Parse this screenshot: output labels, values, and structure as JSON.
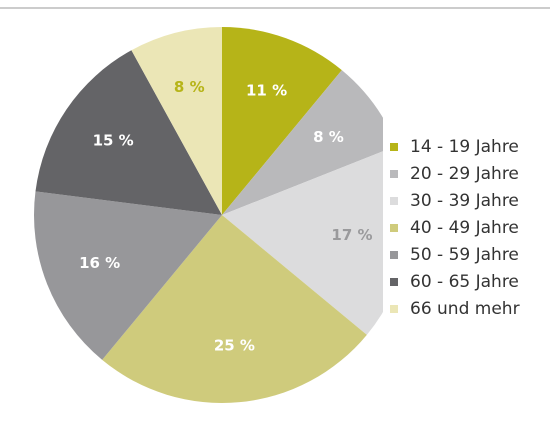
{
  "chart_data": {
    "type": "pie",
    "categories": [
      "14 - 19 Jahre",
      "20 - 29 Jahre",
      "30 - 39 Jahre",
      "40 - 49 Jahre",
      "50 - 59 Jahre",
      "60 - 65 Jahre",
      "66 und mehr"
    ],
    "values": [
      11,
      8,
      17,
      25,
      16,
      15,
      8
    ],
    "value_labels": [
      "11 %",
      "8 %",
      "17 %",
      "25 %",
      "16 %",
      "15 %",
      "8 %"
    ],
    "colors": [
      "#b6b418",
      "#b9b9bb",
      "#dcdcdd",
      "#cfcb7c",
      "#97979a",
      "#646467",
      "#ebe6b6"
    ],
    "label_colors": [
      "#ffffff",
      "#ffffff",
      "#9a9a9c",
      "#ffffff",
      "#ffffff",
      "#ffffff",
      "#b6b418"
    ],
    "legend": "right"
  }
}
